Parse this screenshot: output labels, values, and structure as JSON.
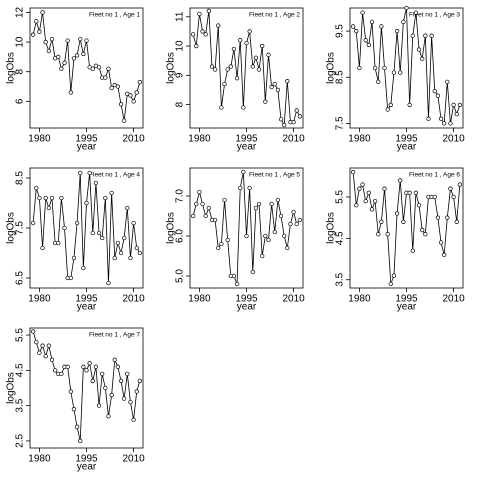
{
  "chart_data": [
    {
      "type": "line",
      "title": "Fleet no 1 , Age 1",
      "xlabel": "year",
      "ylabel": "logObs",
      "color": "#000000",
      "x": [
        1978,
        1979,
        1980,
        1981,
        1982,
        1983,
        1984,
        1985,
        1986,
        1987,
        1988,
        1989,
        1990,
        1991,
        1992,
        1993,
        1994,
        1995,
        1996,
        1997,
        1998,
        1999,
        2000,
        2001,
        2002,
        2003,
        2004,
        2005,
        2006,
        2007,
        2008,
        2009,
        2010,
        2011,
        2012
      ],
      "values": [
        10.5,
        11.4,
        10.7,
        12.0,
        10.0,
        9.4,
        10.2,
        8.9,
        9.0,
        8.2,
        8.6,
        10.1,
        6.6,
        8.9,
        9.1,
        10.2,
        9.2,
        10.1,
        8.3,
        8.2,
        8.4,
        8.3,
        7.6,
        7.6,
        8.2,
        6.9,
        7.1,
        7.0,
        5.8,
        4.7,
        6.5,
        6.4,
        6.0,
        6.6,
        7.3
      ],
      "xlim": [
        1977,
        2013
      ],
      "ylim": [
        4.2,
        12.3
      ],
      "xticks": [
        1980,
        1995,
        2010
      ],
      "yticks": [
        6,
        8,
        10,
        12
      ]
    },
    {
      "type": "line",
      "title": "Fleet no 1 , Age 2",
      "xlabel": "year",
      "ylabel": "logObs",
      "color": "#000000",
      "x": [
        1978,
        1979,
        1980,
        1981,
        1982,
        1983,
        1984,
        1985,
        1986,
        1987,
        1988,
        1989,
        1990,
        1991,
        1992,
        1993,
        1994,
        1995,
        1996,
        1997,
        1998,
        1999,
        2000,
        2001,
        2002,
        2003,
        2004,
        2005,
        2006,
        2007,
        2008,
        2009,
        2010,
        2011,
        2012
      ],
      "values": [
        10.4,
        10.0,
        11.1,
        10.5,
        10.4,
        11.2,
        9.3,
        9.2,
        10.7,
        7.9,
        8.7,
        9.2,
        9.3,
        9.9,
        8.9,
        10.2,
        7.9,
        10.1,
        10.5,
        9.3,
        9.6,
        9.2,
        10.0,
        8.1,
        9.7,
        8.6,
        8.7,
        8.5,
        7.5,
        7.3,
        8.8,
        7.4,
        7.4,
        7.8,
        7.6
      ],
      "xlim": [
        1977,
        2013
      ],
      "ylim": [
        7.2,
        11.3
      ],
      "xticks": [
        1980,
        1995,
        2010
      ],
      "yticks": [
        8,
        9,
        10,
        11
      ]
    },
    {
      "type": "line",
      "title": "Fleet no 1 , Age 3",
      "xlabel": "year",
      "ylabel": "logObs",
      "color": "#000000",
      "x": [
        1978,
        1979,
        1980,
        1981,
        1982,
        1983,
        1984,
        1985,
        1986,
        1987,
        1988,
        1989,
        1990,
        1991,
        1992,
        1993,
        1994,
        1995,
        1996,
        1997,
        1998,
        1999,
        2000,
        2001,
        2002,
        2003,
        2004,
        2005,
        2006,
        2007,
        2008,
        2009,
        2010,
        2011,
        2012
      ],
      "values": [
        9.6,
        9.5,
        8.7,
        9.9,
        9.3,
        9.2,
        9.7,
        8.7,
        8.4,
        9.6,
        8.7,
        7.8,
        7.9,
        8.6,
        9.5,
        8.6,
        9.7,
        10.0,
        7.9,
        9.4,
        9.9,
        9.1,
        8.9,
        9.4,
        7.6,
        9.4,
        8.2,
        8.1,
        7.6,
        7.5,
        8.4,
        7.5,
        7.9,
        7.7,
        7.9
      ],
      "xlim": [
        1977,
        2013
      ],
      "ylim": [
        7.4,
        10.0
      ],
      "xticks": [
        1980,
        1995,
        2010
      ],
      "yticks": [
        7.5,
        8.5,
        9.5
      ]
    },
    {
      "type": "line",
      "title": "Fleet no 1 , Age 4",
      "xlabel": "year",
      "ylabel": "logObs",
      "color": "#000000",
      "x": [
        1978,
        1979,
        1980,
        1981,
        1982,
        1983,
        1984,
        1985,
        1986,
        1987,
        1988,
        1989,
        1990,
        1991,
        1992,
        1993,
        1994,
        1995,
        1996,
        1997,
        1998,
        1999,
        2000,
        2001,
        2002,
        2003,
        2004,
        2005,
        2006,
        2007,
        2008,
        2009,
        2010,
        2011,
        2012
      ],
      "values": [
        7.6,
        8.3,
        8.1,
        7.1,
        8.1,
        7.9,
        8.1,
        7.2,
        7.2,
        8.1,
        7.5,
        6.5,
        6.5,
        6.9,
        7.6,
        8.6,
        6.7,
        8.0,
        8.6,
        7.4,
        8.4,
        7.4,
        7.3,
        8.1,
        6.4,
        8.2,
        6.9,
        7.2,
        7.0,
        7.3,
        7.9,
        6.9,
        7.6,
        7.1,
        7.0
      ],
      "xlim": [
        1977,
        2013
      ],
      "ylim": [
        6.3,
        8.7
      ],
      "xticks": [
        1980,
        1995,
        2010
      ],
      "yticks": [
        6.5,
        7.5,
        8.5
      ]
    },
    {
      "type": "line",
      "title": "Fleet no 1 , Age 5",
      "xlabel": "year",
      "ylabel": "logObs",
      "color": "#000000",
      "x": [
        1978,
        1979,
        1980,
        1981,
        1982,
        1983,
        1984,
        1985,
        1986,
        1987,
        1988,
        1989,
        1990,
        1991,
        1992,
        1993,
        1994,
        1995,
        1996,
        1997,
        1998,
        1999,
        2000,
        2001,
        2002,
        2003,
        2004,
        2005,
        2006,
        2007,
        2008,
        2009,
        2010,
        2011,
        2012
      ],
      "values": [
        6.5,
        6.8,
        7.1,
        6.8,
        6.5,
        6.7,
        6.4,
        6.4,
        5.7,
        5.8,
        6.9,
        5.9,
        5.0,
        5.0,
        4.8,
        7.2,
        7.6,
        6.0,
        7.2,
        5.1,
        6.7,
        6.8,
        5.5,
        6.0,
        5.9,
        6.8,
        6.1,
        6.9,
        6.5,
        6.0,
        5.7,
        6.3,
        6.6,
        6.3,
        6.4
      ],
      "xlim": [
        1977,
        2013
      ],
      "ylim": [
        4.7,
        7.7
      ],
      "xticks": [
        1980,
        1995,
        2010
      ],
      "yticks": [
        {
          "value": 5,
          "label": "5.0"
        },
        {
          "value": 6,
          "label": "6.0"
        },
        {
          "value": 7,
          "label": "7.0"
        }
      ]
    },
    {
      "type": "line",
      "title": "Fleet no 1 , Age 6",
      "xlabel": "year",
      "ylabel": "logObs",
      "color": "#000000",
      "x": [
        1978,
        1979,
        1980,
        1981,
        1982,
        1983,
        1984,
        1985,
        1986,
        1987,
        1988,
        1989,
        1990,
        1991,
        1992,
        1993,
        1994,
        1995,
        1996,
        1997,
        1998,
        1999,
        2000,
        2001,
        2002,
        2003,
        2004,
        2005,
        2006,
        2007,
        2008,
        2009,
        2010,
        2011,
        2012
      ],
      "values": [
        6.1,
        5.3,
        5.7,
        5.8,
        5.4,
        5.6,
        5.2,
        5.4,
        4.6,
        4.9,
        5.7,
        4.6,
        3.4,
        3.6,
        5.1,
        5.9,
        4.9,
        5.6,
        5.6,
        4.2,
        5.6,
        5.3,
        4.7,
        4.6,
        5.5,
        5.5,
        5.5,
        5.0,
        4.4,
        4.1,
        5.0,
        5.7,
        5.5,
        4.9,
        5.8
      ],
      "xlim": [
        1977,
        2013
      ],
      "ylim": [
        3.3,
        6.2
      ],
      "xticks": [
        1980,
        1995,
        2010
      ],
      "yticks": [
        3.5,
        4.5,
        5.5
      ]
    },
    {
      "type": "line",
      "title": "Fleet no 1 , Age 7",
      "xlabel": "year",
      "ylabel": "logObs",
      "color": "#000000",
      "x": [
        1978,
        1979,
        1980,
        1981,
        1982,
        1983,
        1984,
        1985,
        1986,
        1987,
        1988,
        1989,
        1990,
        1991,
        1992,
        1993,
        1994,
        1995,
        1996,
        1997,
        1998,
        1999,
        2000,
        2001,
        2002,
        2003,
        2004,
        2005,
        2006,
        2007,
        2008,
        2009,
        2010,
        2011,
        2012
      ],
      "values": [
        5.6,
        5.3,
        5.0,
        5.2,
        4.9,
        5.2,
        4.8,
        4.5,
        4.4,
        4.4,
        4.6,
        4.6,
        3.9,
        3.4,
        2.9,
        2.5,
        4.6,
        4.5,
        4.7,
        4.2,
        4.6,
        3.5,
        4.4,
        4.0,
        3.2,
        3.8,
        4.8,
        4.6,
        4.2,
        3.7,
        4.4,
        3.6,
        3.1,
        3.9,
        4.2
      ],
      "xlim": [
        1977,
        2013
      ],
      "ylim": [
        2.3,
        5.7
      ],
      "xticks": [
        1980,
        1995,
        2010
      ],
      "yticks": [
        2.5,
        3.5,
        4.5,
        5.5
      ]
    }
  ]
}
